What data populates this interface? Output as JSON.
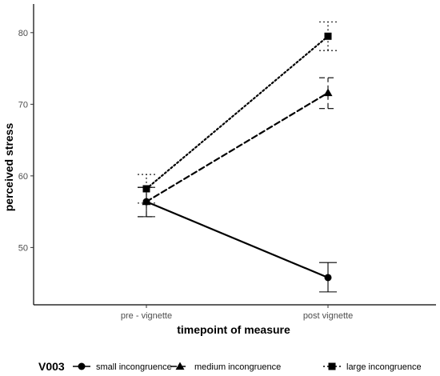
{
  "chart_data": {
    "type": "line",
    "categories": [
      "pre - vignette",
      "post vignette"
    ],
    "xlabel": "timepoint of measure",
    "ylabel": "perceived stress",
    "ylim": [
      42,
      84
    ],
    "yticks": [
      50,
      60,
      70,
      80
    ],
    "grid": false,
    "legend_title": "V003",
    "legend_position": "bottom",
    "series": [
      {
        "name": "small incongruence",
        "marker": "circle",
        "linestyle": "solid",
        "values": [
          56.4,
          45.8
        ],
        "error_low": [
          54.3,
          43.8
        ],
        "error_high": [
          58.4,
          47.9
        ],
        "color": "#000000"
      },
      {
        "name": "medium incongruence",
        "marker": "triangle",
        "linestyle": "dashed",
        "values": [
          56.4,
          71.6
        ],
        "error_low": [
          54.3,
          69.4
        ],
        "error_high": [
          58.4,
          73.7
        ],
        "color": "#000000"
      },
      {
        "name": "large incongruence",
        "marker": "square",
        "linestyle": "dotted",
        "values": [
          58.2,
          79.5
        ],
        "error_low": [
          56.2,
          77.5
        ],
        "error_high": [
          60.2,
          81.5
        ],
        "color": "#000000"
      }
    ]
  }
}
